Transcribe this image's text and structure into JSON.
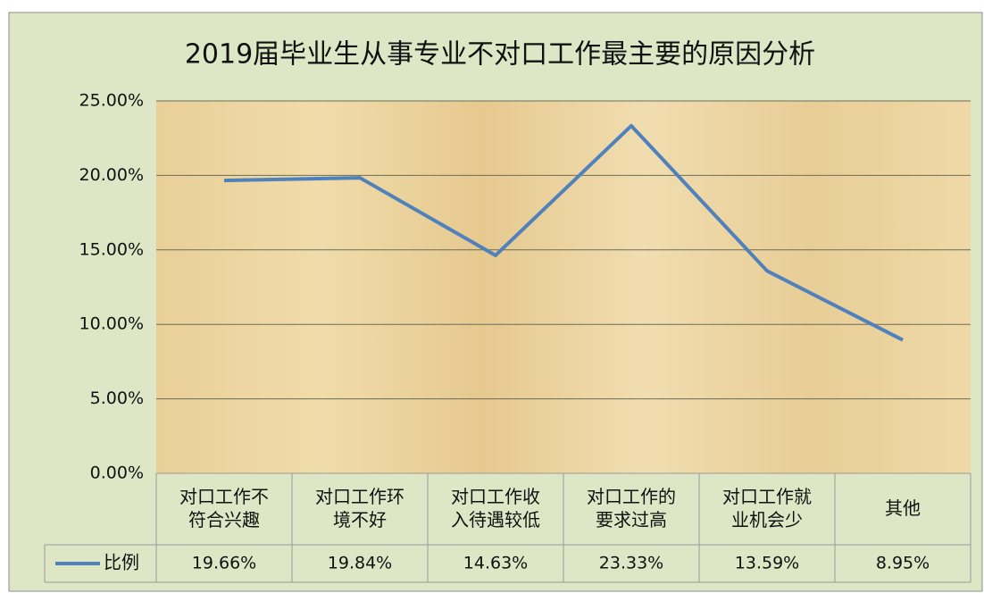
{
  "chart_data": {
    "type": "line",
    "title": "2019届毕业生从事专业不对口工作最主要的原因分析",
    "categories": [
      "对口工作不符合兴趣",
      "对口工作环境不好",
      "对口工作收入待遇较低",
      "对口工作的要求过高",
      "对口工作就业机会少",
      "其他"
    ],
    "series": [
      {
        "name": "比例",
        "color": "#4f81bd",
        "values": [
          19.66,
          19.84,
          14.63,
          23.33,
          13.59,
          8.95
        ],
        "value_labels": [
          "19.66%",
          "19.84%",
          "14.63%",
          "23.33%",
          "13.59%",
          "8.95%"
        ]
      }
    ],
    "ylim": [
      0,
      25
    ],
    "yticks": [
      {
        "value": 0,
        "label": "0.00%"
      },
      {
        "value": 5,
        "label": "5.00%"
      },
      {
        "value": 10,
        "label": "10.00%"
      },
      {
        "value": 15,
        "label": "15.00%"
      },
      {
        "value": 20,
        "label": "20.00%"
      },
      {
        "value": 25,
        "label": "25.00%"
      }
    ],
    "grid": true
  }
}
